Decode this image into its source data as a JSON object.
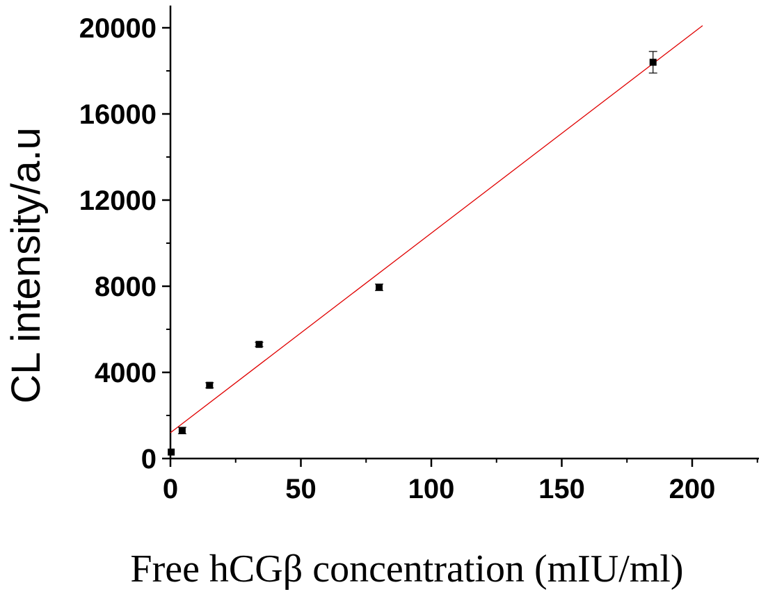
{
  "chart_data": {
    "type": "scatter",
    "title": "",
    "xlabel": "Free hCGβ concentration (mIU/ml)",
    "ylabel": "CL intensity/a.u",
    "xlim": [
      0,
      225
    ],
    "ylim": [
      0,
      20900
    ],
    "xticks": [
      0,
      50,
      100,
      150,
      200
    ],
    "xtick_labels": [
      "0",
      "50",
      "100",
      "150",
      "200"
    ],
    "yticks": [
      0,
      4000,
      8000,
      12000,
      16000,
      20000
    ],
    "ytick_labels": [
      "0",
      "4000",
      "8000",
      "12000",
      "16000",
      "20000"
    ],
    "grid": false,
    "legend": "none",
    "points": [
      {
        "x": 0.3,
        "y": 300,
        "err": 0
      },
      {
        "x": 4.5,
        "y": 1300,
        "err": 150
      },
      {
        "x": 15,
        "y": 3400,
        "err": 120
      },
      {
        "x": 34,
        "y": 5300,
        "err": 100
      },
      {
        "x": 80,
        "y": 7950,
        "err": 150
      },
      {
        "x": 185,
        "y": 18400,
        "err": 500
      }
    ],
    "fit_line": {
      "x": [
        0,
        204
      ],
      "y": [
        1200,
        20100
      ],
      "color": "#e00000"
    },
    "marker_color": "#000000"
  }
}
